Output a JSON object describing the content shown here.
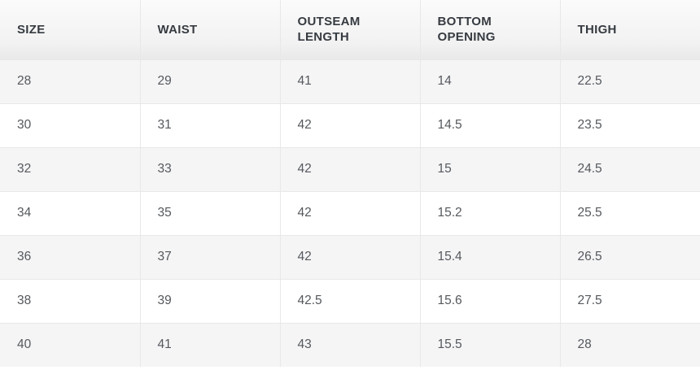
{
  "chart_data": {
    "type": "table",
    "columns": [
      "SIZE",
      "WAIST",
      "OUTSEAM LENGTH",
      "BOTTOM OPENING",
      "THIGH"
    ],
    "rows": [
      [
        "28",
        "29",
        "41",
        "14",
        "22.5"
      ],
      [
        "30",
        "31",
        "42",
        "14.5",
        "23.5"
      ],
      [
        "32",
        "33",
        "42",
        "15",
        "24.5"
      ],
      [
        "34",
        "35",
        "42",
        "15.2",
        "25.5"
      ],
      [
        "36",
        "37",
        "42",
        "15.4",
        "26.5"
      ],
      [
        "38",
        "39",
        "42.5",
        "15.6",
        "27.5"
      ],
      [
        "40",
        "41",
        "43",
        "15.5",
        "28"
      ]
    ]
  },
  "colors": {
    "header_text": "#363b41",
    "cell_text": "#55595d",
    "stripe_row_bg": "#f5f5f6",
    "white_row_bg": "#ffffff",
    "border": "#e8e8e9",
    "header_bg_top": "#fbfbfb",
    "header_bg_bottom": "#e9e9ea"
  }
}
